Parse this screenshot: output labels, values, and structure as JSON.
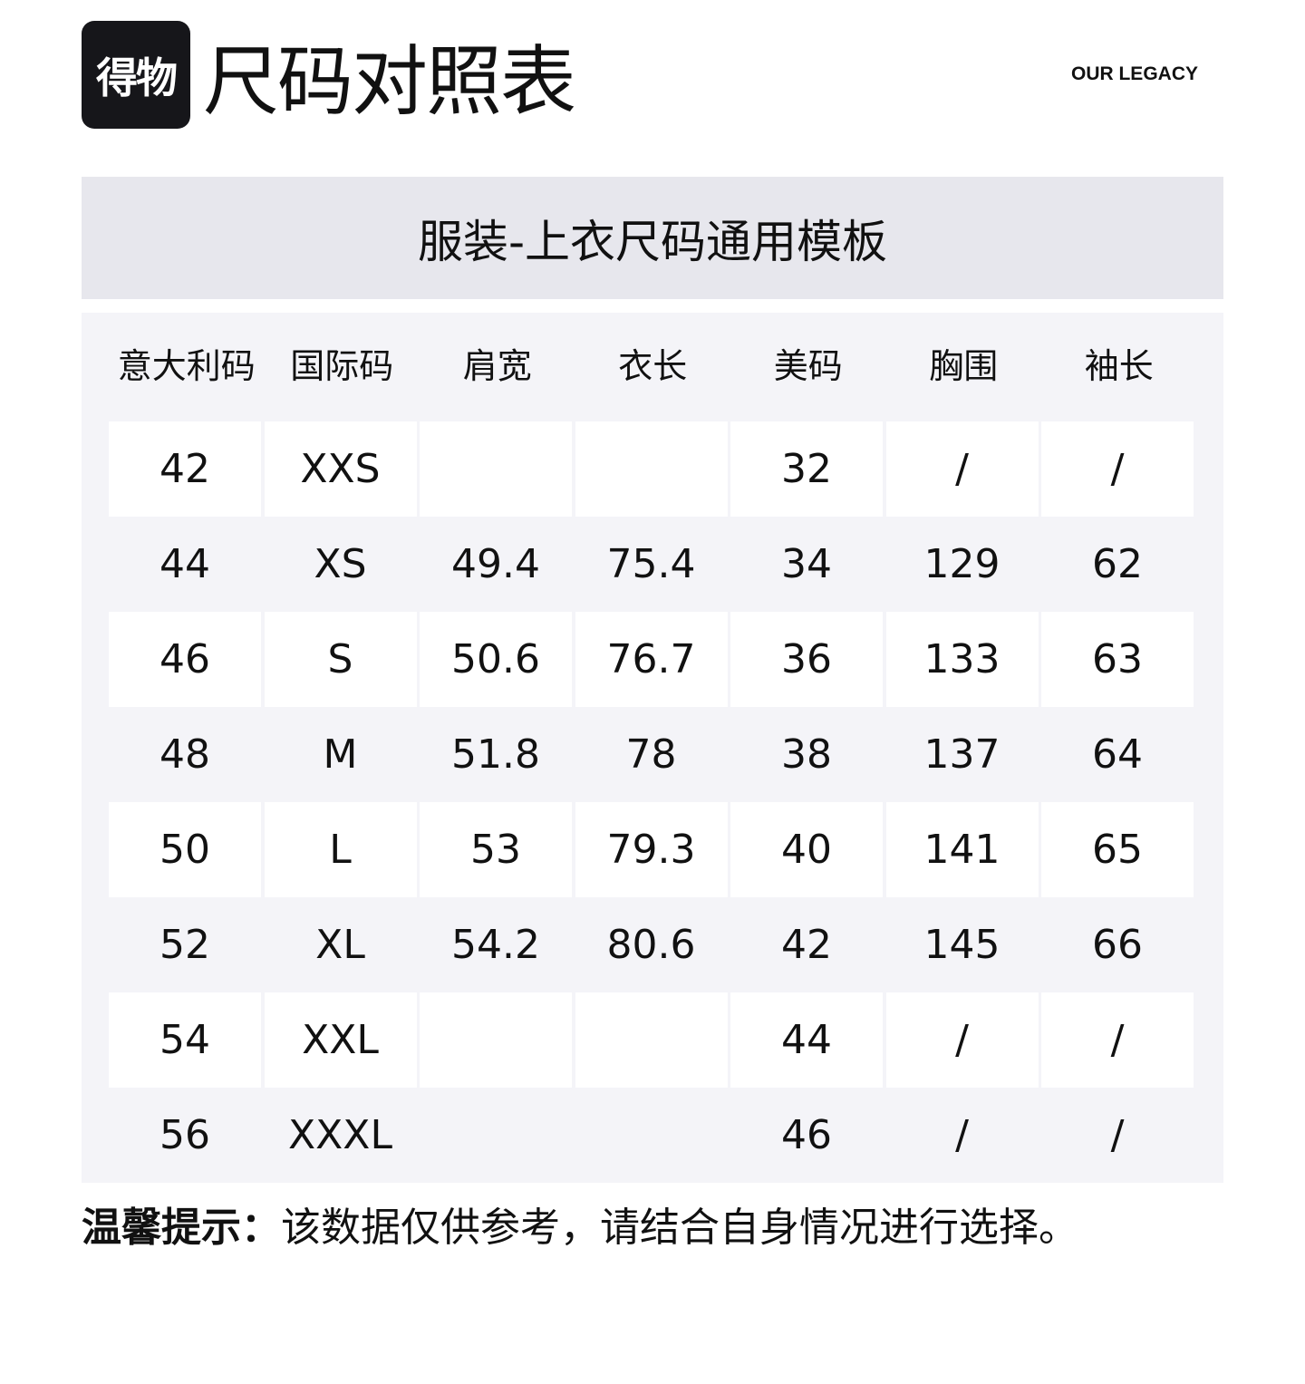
{
  "logo_text": "得物",
  "title": "尺码对照表",
  "brand": "OUR LEGACY",
  "subtitle": "服装-上衣尺码通用模板",
  "table": {
    "headers": [
      "意大利码",
      "国际码",
      "肩宽",
      "衣长",
      "美码",
      "胸围",
      "袖长"
    ],
    "rows": [
      [
        "42",
        "XXS",
        "",
        "",
        "32",
        "/",
        "/"
      ],
      [
        "44",
        "XS",
        "49.4",
        "75.4",
        "34",
        "129",
        "62"
      ],
      [
        "46",
        "S",
        "50.6",
        "76.7",
        "36",
        "133",
        "63"
      ],
      [
        "48",
        "M",
        "51.8",
        "78",
        "38",
        "137",
        "64"
      ],
      [
        "50",
        "L",
        "53",
        "79.3",
        "40",
        "141",
        "65"
      ],
      [
        "52",
        "XL",
        "54.2",
        "80.6",
        "42",
        "145",
        "66"
      ],
      [
        "54",
        "XXL",
        "",
        "",
        "44",
        "/",
        "/"
      ],
      [
        "56",
        "XXXL",
        "",
        "",
        "46",
        "/",
        "/"
      ]
    ]
  },
  "note": {
    "label": "温馨提示：",
    "text": "该数据仅供参考，请结合自身情况进行选择。"
  }
}
